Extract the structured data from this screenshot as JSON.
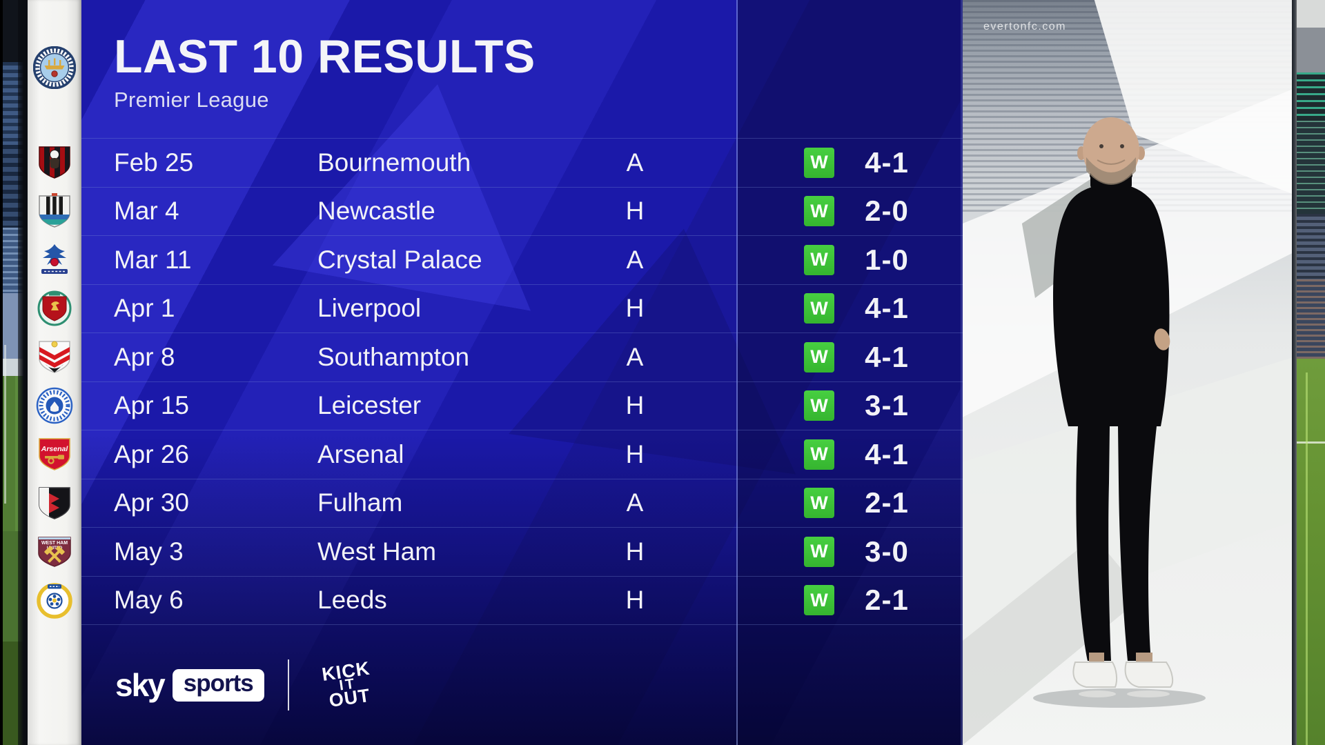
{
  "header": {
    "title": "LAST 10 RESULTS",
    "subtitle": "Premier League"
  },
  "team": {
    "name": "Manchester City",
    "badge": "manchester-city"
  },
  "results": [
    {
      "date": "Feb 25",
      "opponent": "Bournemouth",
      "venue": "A",
      "result": "W",
      "score": "4-1",
      "badge": "bournemouth"
    },
    {
      "date": "Mar 4",
      "opponent": "Newcastle",
      "venue": "H",
      "result": "W",
      "score": "2-0",
      "badge": "newcastle"
    },
    {
      "date": "Mar 11",
      "opponent": "Crystal Palace",
      "venue": "A",
      "result": "W",
      "score": "1-0",
      "badge": "crystal-palace"
    },
    {
      "date": "Apr 1",
      "opponent": "Liverpool",
      "venue": "H",
      "result": "W",
      "score": "4-1",
      "badge": "liverpool"
    },
    {
      "date": "Apr 8",
      "opponent": "Southampton",
      "venue": "A",
      "result": "W",
      "score": "4-1",
      "badge": "southampton"
    },
    {
      "date": "Apr 15",
      "opponent": "Leicester",
      "venue": "H",
      "result": "W",
      "score": "3-1",
      "badge": "leicester"
    },
    {
      "date": "Apr 26",
      "opponent": "Arsenal",
      "venue": "H",
      "result": "W",
      "score": "4-1",
      "badge": "arsenal"
    },
    {
      "date": "Apr 30",
      "opponent": "Fulham",
      "venue": "A",
      "result": "W",
      "score": "2-1",
      "badge": "fulham"
    },
    {
      "date": "May 3",
      "opponent": "West Ham",
      "venue": "H",
      "result": "W",
      "score": "3-0",
      "badge": "west-ham"
    },
    {
      "date": "May 6",
      "opponent": "Leeds",
      "venue": "H",
      "result": "W",
      "score": "2-1",
      "badge": "leeds"
    }
  ],
  "footer": {
    "sky_label": "sky",
    "sports_label": "sports",
    "kick_it_out_lines": [
      "KICK",
      "IT",
      "OUT"
    ]
  },
  "badges_text": {
    "arsenal_label": "Arsenal",
    "west_ham_label": "WEST HAM",
    "west_ham_label2": "UNITED"
  },
  "background": {
    "watermark": "evertonfc.com"
  },
  "colors": {
    "panel_blue": "#1b19a9",
    "stripe_blue": "#403ee8",
    "win_green": "#3ec43a",
    "text_white": "#f2f2f7",
    "sidebar_white": "#f3f3f0",
    "sports_box_navy": "#14144e"
  }
}
